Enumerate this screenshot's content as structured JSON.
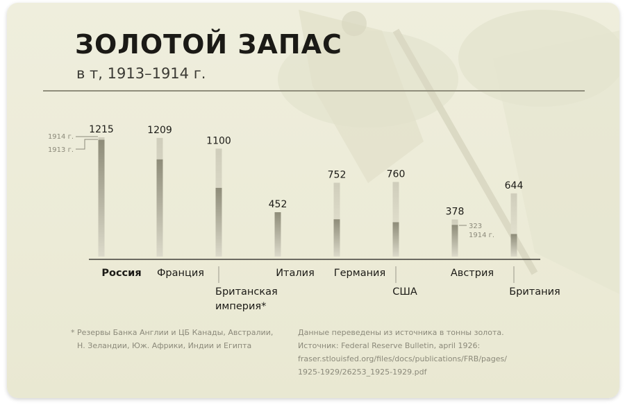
{
  "title": "ЗОЛОТОЙ ЗАПАС",
  "subtitle": "в т, 1913–1914 г.",
  "chart_data": {
    "type": "bar",
    "categories": [
      "Россия",
      "Франция",
      "Британская империя*",
      "Италия",
      "Германия",
      "США",
      "Австрия",
      "Британия"
    ],
    "category_lines": [
      [
        "Россия"
      ],
      [
        "Франция"
      ],
      [
        "Британская",
        "империя*"
      ],
      [
        "Италия"
      ],
      [
        "Германия"
      ],
      [
        "США"
      ],
      [
        "Австрия"
      ],
      [
        "Британия"
      ]
    ],
    "series": [
      {
        "name": "1914 г.",
        "values": [
          1215,
          1209,
          1100,
          452,
          752,
          760,
          378,
          644
        ]
      },
      {
        "name": "1913 г.",
        "values": [
          1190,
          990,
          700,
          452,
          380,
          350,
          323,
          230
        ]
      }
    ],
    "value_labels": [
      "1215",
      "1209",
      "1100",
      "452",
      "752",
      "760",
      "378",
      "644"
    ],
    "ylim": [
      0,
      1215
    ],
    "annotations": [
      {
        "category": "Россия",
        "labels": [
          "1914 г.",
          "1913 г."
        ]
      },
      {
        "category": "Австрия",
        "labels": [
          "323",
          "1914 г."
        ]
      }
    ],
    "highlight_category": "Россия",
    "colors": {
      "bar_1914_top": "#cfcdbb",
      "bar_1914_bottom": "#ebe9d7",
      "bar_1913_top": "#8e8c79",
      "bar_1913_bottom": "#dcdaca",
      "axis": "#1f1e1a",
      "text": "#1b1a16",
      "annotation": "#8b897a"
    }
  },
  "footnote": {
    "lines": [
      "* Резервы Банка Англии и ЦБ Канады, Австралии,",
      "Н. Зеландии, Юж. Африки, Индии и Египта"
    ]
  },
  "source": {
    "lines": [
      "Данные переведены из источника в тонны золота.",
      "Источник: Federal Reserve Bulletin, april 1926:",
      "fraser.stlouisfed.org/files/docs/publications/FRB/pages/",
      "1925-1929/26253_1925-1929.pdf"
    ]
  }
}
